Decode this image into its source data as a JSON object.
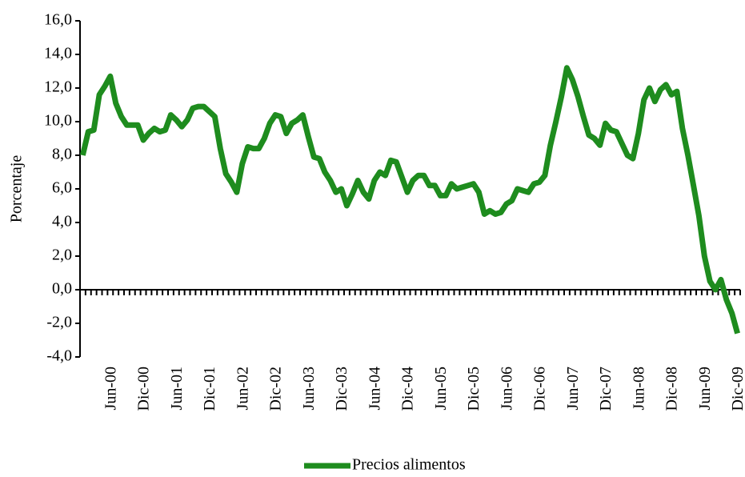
{
  "chart_data": {
    "type": "line",
    "y_label": "Porcentaje",
    "categories": [
      null,
      null,
      null,
      null,
      null,
      "Jun-00",
      null,
      null,
      null,
      null,
      null,
      "Dic-00",
      null,
      null,
      null,
      null,
      null,
      "Jun-01",
      null,
      null,
      null,
      null,
      null,
      "Dic-01",
      null,
      null,
      null,
      null,
      null,
      "Jun-02",
      null,
      null,
      null,
      null,
      null,
      "Dic-02",
      null,
      null,
      null,
      null,
      null,
      "Jun-03",
      null,
      null,
      null,
      null,
      null,
      "Dic-03",
      null,
      null,
      null,
      null,
      null,
      "Jun-04",
      null,
      null,
      null,
      null,
      null,
      "Dic-04",
      null,
      null,
      null,
      null,
      null,
      "Jun-05",
      null,
      null,
      null,
      null,
      null,
      "Dic-05",
      null,
      null,
      null,
      null,
      null,
      "Jun-06",
      null,
      null,
      null,
      null,
      null,
      "Dic-06",
      null,
      null,
      null,
      null,
      null,
      "Jun-07",
      null,
      null,
      null,
      null,
      null,
      "Dic-07",
      null,
      null,
      null,
      null,
      null,
      "Jun-08",
      null,
      null,
      null,
      null,
      null,
      "Dic-08",
      null,
      null,
      null,
      null,
      null,
      "Jun-09",
      null,
      null,
      null,
      null,
      null,
      "Dic-09"
    ],
    "series": [
      {
        "name": "Precios alimentos",
        "color": "#1e8c1e",
        "values": [
          8.0,
          9.4,
          9.5,
          11.6,
          12.1,
          12.7,
          11.1,
          10.3,
          9.8,
          9.8,
          9.8,
          8.9,
          9.3,
          9.6,
          9.4,
          9.5,
          10.4,
          10.1,
          9.7,
          10.1,
          10.8,
          10.9,
          10.9,
          10.6,
          10.3,
          8.4,
          6.9,
          6.4,
          5.8,
          7.5,
          8.5,
          8.4,
          8.4,
          9.0,
          9.9,
          10.4,
          10.3,
          9.3,
          9.9,
          10.1,
          10.4,
          9.1,
          7.9,
          7.8,
          7.0,
          6.5,
          5.8,
          6.0,
          5.0,
          5.7,
          6.5,
          5.8,
          5.4,
          6.5,
          7.0,
          6.8,
          7.7,
          7.6,
          6.7,
          5.8,
          6.5,
          6.8,
          6.8,
          6.2,
          6.2,
          5.6,
          5.6,
          6.3,
          6.0,
          6.1,
          6.2,
          6.3,
          5.8,
          4.5,
          4.7,
          4.5,
          4.6,
          5.1,
          5.3,
          6.0,
          5.9,
          5.8,
          6.3,
          6.4,
          6.8,
          8.6,
          10.0,
          11.5,
          13.2,
          12.5,
          11.5,
          10.3,
          9.2,
          9.0,
          8.6,
          9.9,
          9.5,
          9.4,
          8.7,
          8.0,
          7.8,
          9.3,
          11.3,
          12.0,
          11.2,
          11.9,
          12.2,
          11.6,
          11.8,
          9.6,
          8.0,
          6.2,
          4.4,
          2.0,
          0.5,
          0.0,
          0.6,
          -0.6,
          -1.4,
          -2.6
        ]
      }
    ],
    "ylim": [
      -4,
      16
    ],
    "yticks": [
      {
        "value": -4,
        "label": "-4,0"
      },
      {
        "value": -2,
        "label": "-2,0"
      },
      {
        "value": 0,
        "label": "0,0"
      },
      {
        "value": 2,
        "label": "2,0"
      },
      {
        "value": 4,
        "label": "4,0"
      },
      {
        "value": 6,
        "label": "6,0"
      },
      {
        "value": 8,
        "label": "8,0"
      },
      {
        "value": 10,
        "label": "10,0"
      },
      {
        "value": 12,
        "label": "12,0"
      },
      {
        "value": 14,
        "label": "14,0"
      },
      {
        "value": 16,
        "label": "16,0"
      }
    ],
    "grid": false,
    "legend": "bottom"
  }
}
